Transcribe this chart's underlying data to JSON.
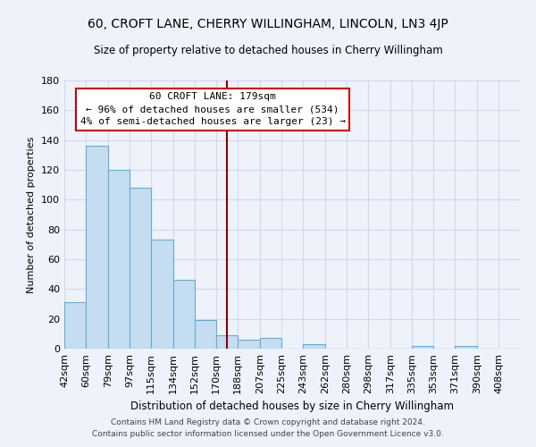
{
  "title": "60, CROFT LANE, CHERRY WILLINGHAM, LINCOLN, LN3 4JP",
  "subtitle": "Size of property relative to detached houses in Cherry Willingham",
  "xlabel": "Distribution of detached houses by size in Cherry Willingham",
  "ylabel": "Number of detached properties",
  "bar_color": "#c5ddf0",
  "bar_edge_color": "#6aaad4",
  "bin_labels": [
    "42sqm",
    "60sqm",
    "79sqm",
    "97sqm",
    "115sqm",
    "134sqm",
    "152sqm",
    "170sqm",
    "188sqm",
    "207sqm",
    "225sqm",
    "243sqm",
    "262sqm",
    "280sqm",
    "298sqm",
    "317sqm",
    "335sqm",
    "353sqm",
    "371sqm",
    "390sqm",
    "408sqm"
  ],
  "bin_edges": [
    42,
    60,
    79,
    97,
    115,
    134,
    152,
    170,
    188,
    207,
    225,
    243,
    262,
    280,
    298,
    317,
    335,
    353,
    371,
    390,
    408
  ],
  "bar_heights": [
    31,
    136,
    120,
    108,
    73,
    46,
    19,
    9,
    6,
    7,
    0,
    3,
    0,
    0,
    0,
    0,
    2,
    0,
    2,
    0,
    0
  ],
  "ylim": [
    0,
    180
  ],
  "yticks": [
    0,
    20,
    40,
    60,
    80,
    100,
    120,
    140,
    160,
    180
  ],
  "property_size": 179,
  "vline_color": "#8b0000",
  "annotation_text_line1": "60 CROFT LANE: 179sqm",
  "annotation_text_line2": "← 96% of detached houses are smaller (534)",
  "annotation_text_line3": "4% of semi-detached houses are larger (23) →",
  "annotation_box_facecolor": "#ffffff",
  "annotation_box_edgecolor": "#cc0000",
  "footer_line1": "Contains HM Land Registry data © Crown copyright and database right 2024.",
  "footer_line2": "Contains public sector information licensed under the Open Government Licence v3.0.",
  "bg_color": "#eef2fb",
  "grid_color": "#d0d8ee"
}
